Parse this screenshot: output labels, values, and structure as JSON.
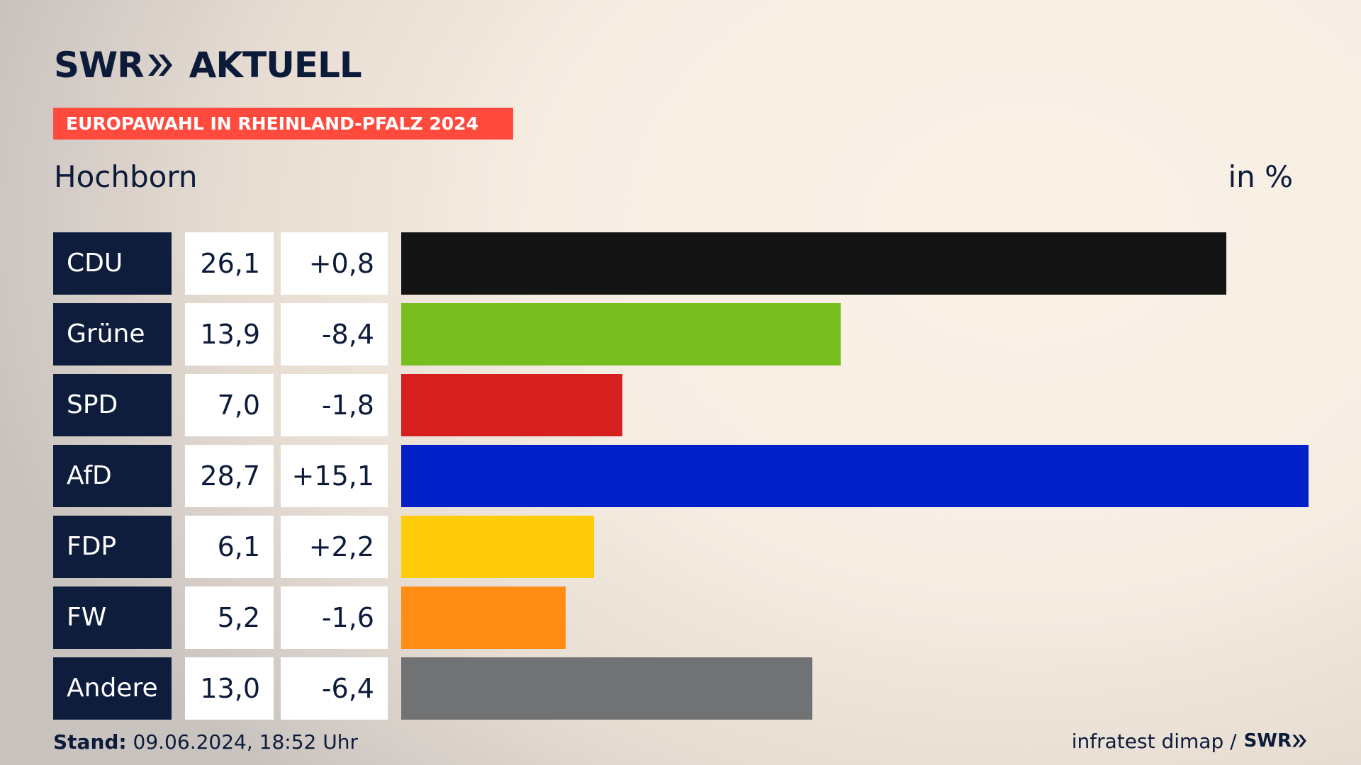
{
  "brand": {
    "logo_text_left": "SWR",
    "logo_text_right": "AKTUELL",
    "color_navy": "#0d1b3a",
    "color_red": "#ff4b3e"
  },
  "headline": "EUROPAWAHL IN RHEINLAND-PFALZ 2024",
  "region": "Hochborn",
  "unit": "in %",
  "footer": {
    "stand_label": "Stand:",
    "stand_value": "09.06.2024, 18:52 Uhr",
    "source": "infratest dimap /",
    "source_brand": "SWR"
  },
  "chart_data": {
    "type": "bar",
    "title": "Hochborn",
    "ylabel": "in %",
    "categories": [
      "CDU",
      "Grüne",
      "SPD",
      "AfD",
      "FDP",
      "FW",
      "Andere"
    ],
    "values": [
      26.1,
      13.9,
      7.0,
      28.7,
      6.1,
      5.2,
      13.0
    ],
    "value_labels": [
      "26,1",
      "13,9",
      "7,0",
      "28,7",
      "6,1",
      "5,2",
      "13,0"
    ],
    "changes": [
      0.8,
      -8.4,
      -1.8,
      15.1,
      2.2,
      -1.6,
      -6.4
    ],
    "change_labels": [
      "+0,8",
      "-8,4",
      "-1,8",
      "+15,1",
      "+2,2",
      "-1,6",
      "-6,4"
    ],
    "colors": [
      "#141414",
      "#78be1e",
      "#d61f1f",
      "#0220c8",
      "#ffcc0a",
      "#ff8c14",
      "#717274"
    ],
    "xlim": [
      0,
      28.7
    ],
    "grid": false,
    "legend": "none"
  }
}
